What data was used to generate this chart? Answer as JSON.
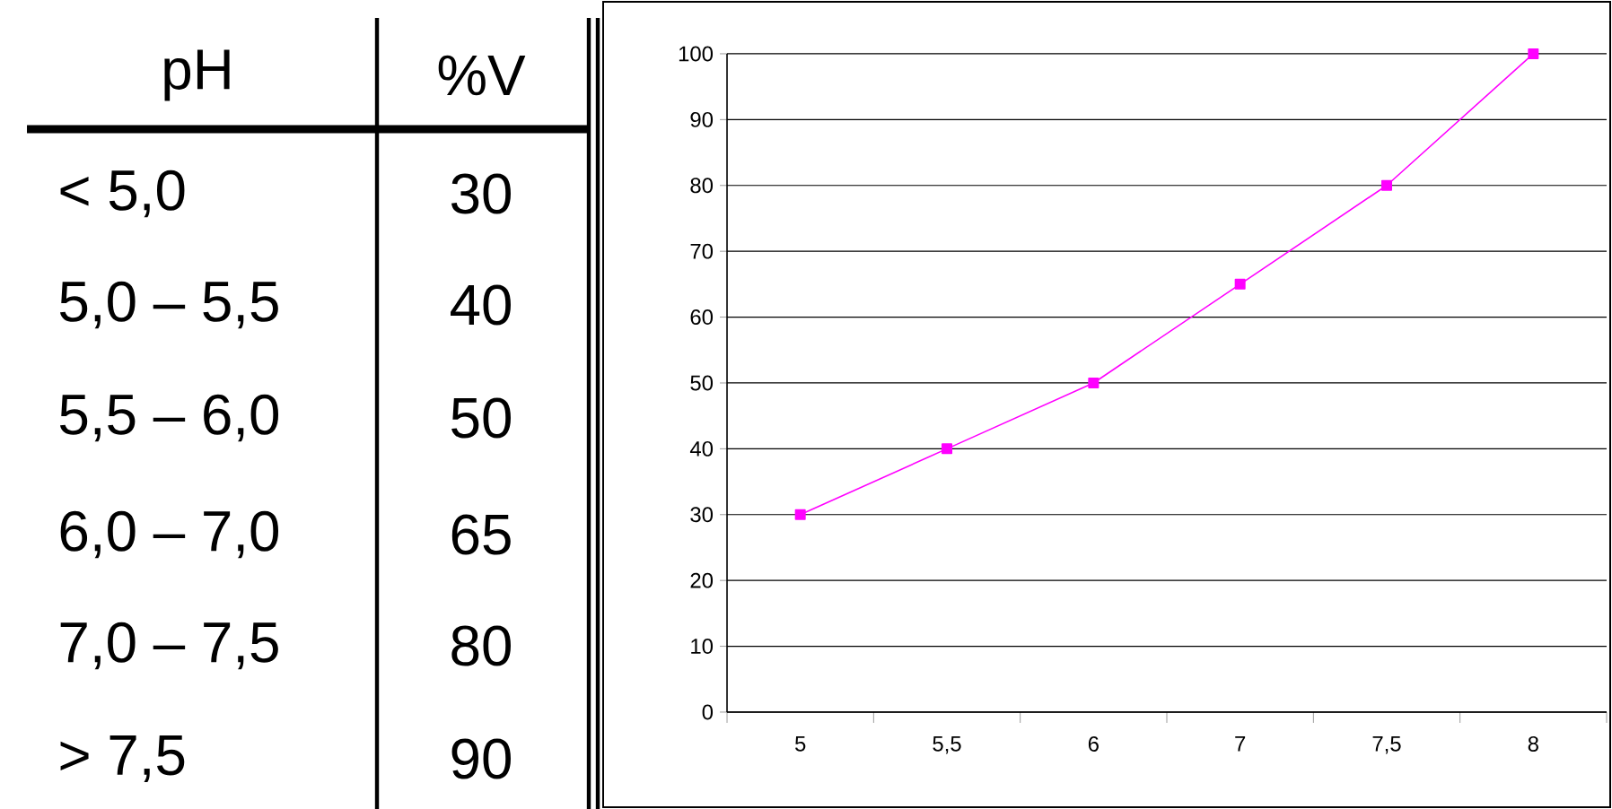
{
  "chart_data": [
    {
      "type": "other",
      "annotations": [
        "pH",
        "%V",
        "< 5,0",
        "30",
        "5,0 – 5,5",
        "40",
        "5,5 – 6,0",
        "50",
        "6,0 – 7,0",
        "65",
        "7,0 – 7,5",
        "80",
        "> 7,5",
        "90"
      ]
    },
    {
      "type": "line",
      "categories": [
        "5",
        "5,5",
        "6",
        "7",
        "7,5",
        "8"
      ],
      "values": [
        30,
        40,
        50,
        65,
        80,
        100
      ],
      "color": "#ff00ff",
      "marker": "square",
      "ylim": [
        0,
        100
      ],
      "yticks": [
        0,
        10,
        20,
        30,
        40,
        50,
        60,
        70,
        80,
        90,
        100
      ],
      "grid": "y"
    }
  ]
}
